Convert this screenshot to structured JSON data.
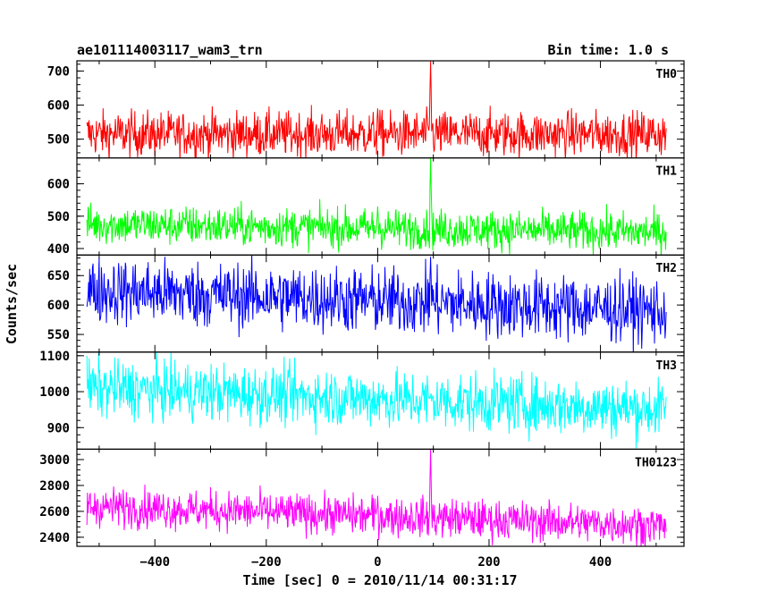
{
  "chart_data": {
    "type": "line",
    "title": "ae101114003117_wam3_trn",
    "subtitle": "Bin time: 1.0 s",
    "xlabel": "Time [sec] 0 = 2010/11/14 00:31:17",
    "ylabel": "Counts/sec",
    "xlim": [
      -540,
      550
    ],
    "x_ticks": [
      -400,
      -200,
      0,
      200,
      400
    ],
    "x_tick_labels": [
      "−400",
      "−200",
      "0",
      "200",
      "400"
    ],
    "x_range": [
      -522,
      518
    ],
    "grid": false,
    "panels": [
      {
        "name": "TH0",
        "color": "#ff0000",
        "ylim": [
          445,
          730
        ],
        "yticks": [
          500,
          600,
          700
        ],
        "base_start": 515,
        "base_end": 515,
        "noise": 33,
        "spikes": [
          {
            "x": 95,
            "value": 730
          },
          {
            "x": 0,
            "value": 590
          }
        ]
      },
      {
        "name": "TH1",
        "color": "#00ff00",
        "ylim": [
          380,
          680
        ],
        "yticks": [
          400,
          500,
          600
        ],
        "base_start": 475,
        "base_end": 450,
        "noise": 30,
        "spikes": [
          {
            "x": 95,
            "value": 680
          },
          {
            "x": 0,
            "value": 530
          }
        ]
      },
      {
        "name": "TH2",
        "color": "#0000ff",
        "ylim": [
          520,
          685
        ],
        "yticks": [
          550,
          600,
          650
        ],
        "base_start": 625,
        "base_end": 590,
        "noise": 28,
        "spikes": [
          {
            "x": 95,
            "value": 682
          }
        ]
      },
      {
        "name": "TH3",
        "color": "#00ffff",
        "ylim": [
          840,
          1110
        ],
        "yticks": [
          900,
          1000,
          1100
        ],
        "base_start": 1010,
        "base_end": 950,
        "noise": 40,
        "spikes": []
      },
      {
        "name": "TH0123",
        "color": "#ff00ff",
        "ylim": [
          2330,
          3080
        ],
        "yticks": [
          2400,
          2600,
          2800,
          3000
        ],
        "base_start": 2640,
        "base_end": 2490,
        "noise": 75,
        "spikes": [
          {
            "x": 95,
            "value": 3080
          },
          {
            "x": 0,
            "value": 2720
          }
        ]
      }
    ]
  }
}
